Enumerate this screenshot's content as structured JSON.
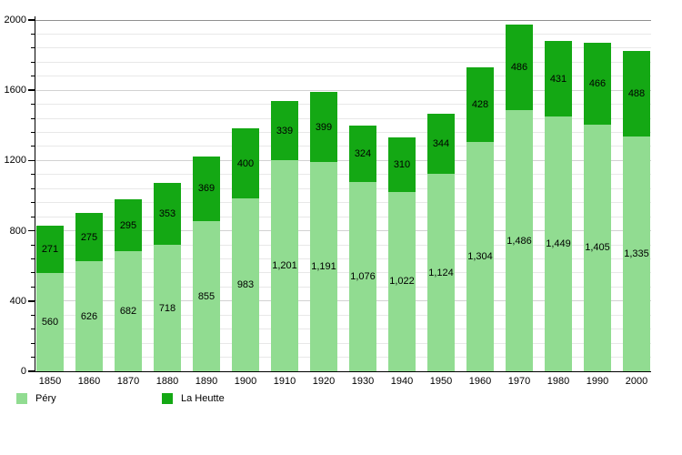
{
  "chart_data": {
    "type": "bar",
    "stacked": true,
    "title": "",
    "xlabel": "",
    "ylabel": "",
    "categories": [
      "1850",
      "1860",
      "1870",
      "1880",
      "1890",
      "1900",
      "1910",
      "1920",
      "1930",
      "1940",
      "1950",
      "1960",
      "1970",
      "1980",
      "1990",
      "2000"
    ],
    "series": [
      {
        "name": "Péry",
        "color": "#91dc91",
        "values": [
          560,
          626,
          682,
          718,
          855,
          983,
          1201,
          1191,
          1076,
          1022,
          1124,
          1304,
          1486,
          1449,
          1405,
          1335
        ],
        "labels": [
          "560",
          "626",
          "682",
          "718",
          "855",
          "983",
          "1,201",
          "1,191",
          "1,076",
          "1,022",
          "1,124",
          "1,304",
          "1,486",
          "1,449",
          "1,405",
          "1,335"
        ]
      },
      {
        "name": "La Heutte",
        "color": "#14a814",
        "values": [
          271,
          275,
          295,
          353,
          369,
          400,
          339,
          399,
          324,
          310,
          344,
          428,
          486,
          431,
          466,
          488
        ],
        "labels": [
          "271",
          "275",
          "295",
          "353",
          "369",
          "400",
          "339",
          "399",
          "324",
          "310",
          "344",
          "428",
          "486",
          "431",
          "466",
          "488"
        ]
      }
    ],
    "ylim": [
      0,
      2000
    ],
    "yticks": [
      0,
      400,
      800,
      1200,
      1600,
      2000
    ],
    "ytick_labels": [
      "0",
      "400",
      "800",
      "1200",
      "1600",
      "2000"
    ],
    "y_minor_step": 80,
    "grid": "horizontal",
    "legend_position": "bottom-left",
    "label_color": "#000000",
    "axis_color": "#000000"
  }
}
